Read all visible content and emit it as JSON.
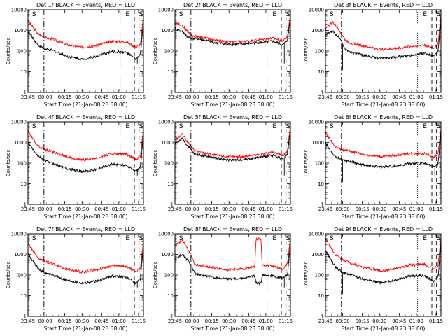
{
  "colors": {
    "events": "#000000",
    "lld": "#ff0000",
    "background": "#ffffff"
  },
  "chart_data": [
    {
      "type": "line",
      "title": "Det 1f BLACK = Events, RED = LLD",
      "ylabel": "Counts/sec",
      "xlabel": "Start Time (21-Jan-08 23:38:00)",
      "x_ticks": [
        "23:45",
        "00:00",
        "00:15",
        "00:30",
        "00:45",
        "01:00",
        "01:15"
      ],
      "y_ticks": [
        "1",
        "10",
        "100",
        "1000",
        "10000"
      ],
      "y_scale": "log",
      "ylim": [
        1,
        10000
      ],
      "markers": {
        "S_left": "S",
        "E": "E",
        "S_right": "S"
      },
      "series": [
        {
          "color": "#ff0000",
          "x": [
            0,
            4,
            7,
            10,
            16,
            22,
            28,
            34,
            40,
            44,
            45.8,
            47
          ],
          "y": [
            3000,
            700,
            450,
            380,
            200,
            150,
            190,
            300,
            280,
            150,
            220,
            5000
          ]
        },
        {
          "color": "#000000",
          "x": [
            0,
            4,
            7,
            10,
            16,
            22,
            28,
            34,
            40,
            44,
            45.8,
            47
          ],
          "y": [
            900,
            200,
            120,
            110,
            55,
            40,
            55,
            95,
            85,
            40,
            70,
            3000
          ]
        }
      ]
    },
    {
      "type": "line",
      "title": "Det 2f BLACK = Events, RED = LLD",
      "ylabel": "Counts/sec",
      "xlabel": "Start Time (21-Jan-08 23:38:00)",
      "x_ticks": [
        "23:45",
        "00:00",
        "00:15",
        "00:30",
        "00:45",
        "01:00",
        "01:15"
      ],
      "y_ticks": [
        "1",
        "10",
        "100",
        "1000",
        "10000"
      ],
      "y_scale": "log",
      "ylim": [
        1,
        10000
      ],
      "markers": {
        "S_left": "S",
        "E": "E",
        "S_right": "S"
      },
      "series": [
        {
          "color": "#ff0000",
          "x": [
            0,
            3,
            5,
            7,
            10,
            16,
            22,
            28,
            34,
            40,
            44,
            45.8,
            47
          ],
          "y": [
            2500,
            1800,
            900,
            550,
            500,
            340,
            280,
            290,
            350,
            420,
            300,
            500,
            7000
          ]
        },
        {
          "color": "#000000",
          "x": [
            0,
            3,
            5,
            7,
            10,
            16,
            22,
            28,
            34,
            40,
            44,
            45.8,
            47
          ],
          "y": [
            1200,
            900,
            500,
            400,
            380,
            260,
            210,
            220,
            260,
            300,
            200,
            350,
            4000
          ]
        }
      ]
    },
    {
      "type": "line",
      "title": "Det 3f BLACK = Events, RED = LLD",
      "ylabel": "Counts/sec",
      "xlabel": "Start Time (21-Jan-08 23:38:00)",
      "x_ticks": [
        "23:45",
        "00:00",
        "00:15",
        "00:30",
        "00:45",
        "01:00",
        "01:15"
      ],
      "y_ticks": [
        "1",
        "10",
        "100",
        "1000",
        "10000"
      ],
      "y_scale": "log",
      "ylim": [
        1,
        10000
      ],
      "markers": {
        "S_left": "S",
        "E": "E",
        "S_right": "S"
      },
      "series": [
        {
          "color": "#ff0000",
          "x": [
            0,
            3,
            6,
            8,
            10,
            16,
            22,
            28,
            34,
            40,
            44,
            45.8,
            47
          ],
          "y": [
            1300,
            2500,
            900,
            350,
            250,
            170,
            120,
            130,
            160,
            200,
            140,
            220,
            6000
          ]
        },
        {
          "color": "#000000",
          "x": [
            0,
            3,
            6,
            8,
            10,
            16,
            22,
            28,
            34,
            40,
            44,
            45.8,
            47
          ],
          "y": [
            600,
            900,
            400,
            120,
            90,
            60,
            45,
            50,
            60,
            80,
            55,
            90,
            3000
          ]
        }
      ]
    },
    {
      "type": "line",
      "title": "Det 4f BLACK = Events, RED = LLD",
      "ylabel": "Counts/sec",
      "xlabel": "Start Time (21-Jan-08 23:38:00)",
      "x_ticks": [
        "23:45",
        "00:00",
        "00:15",
        "00:30",
        "00:45",
        "01:00",
        "01:15"
      ],
      "y_ticks": [
        "1",
        "10",
        "100",
        "1000",
        "10000"
      ],
      "y_scale": "log",
      "ylim": [
        1,
        10000
      ],
      "markers": {
        "S_left": "S",
        "E": "E",
        "S_right": "S"
      },
      "series": [
        {
          "color": "#ff0000",
          "x": [
            0,
            4,
            7,
            10,
            16,
            22,
            28,
            34,
            40,
            44,
            45.8,
            47
          ],
          "y": [
            3500,
            700,
            450,
            350,
            200,
            140,
            180,
            290,
            270,
            150,
            220,
            5000
          ]
        },
        {
          "color": "#000000",
          "x": [
            0,
            4,
            7,
            10,
            16,
            22,
            28,
            34,
            40,
            44,
            45.8,
            47
          ],
          "y": [
            1000,
            220,
            130,
            100,
            55,
            38,
            50,
            90,
            80,
            38,
            65,
            3000
          ]
        }
      ]
    },
    {
      "type": "line",
      "title": "Det 5f BLACK = Events, RED = LLD",
      "ylabel": "Counts/sec",
      "xlabel": "Start Time (21-Jan-08 23:38:00)",
      "x_ticks": [
        "23:45",
        "00:00",
        "00:15",
        "00:30",
        "00:45",
        "01:00",
        "01:15"
      ],
      "y_ticks": [
        "1",
        "10",
        "100",
        "1000",
        "10000"
      ],
      "y_scale": "log",
      "ylim": [
        1,
        10000
      ],
      "markers": {
        "S_left": "S",
        "E": "E",
        "S_right": "S"
      },
      "series": [
        {
          "color": "#ff0000",
          "x": [
            0,
            3,
            5.5,
            8,
            10,
            16,
            22,
            28,
            34,
            40,
            44,
            45.8,
            47
          ],
          "y": [
            1300,
            2500,
            900,
            400,
            350,
            250,
            200,
            210,
            260,
            330,
            230,
            400,
            7000
          ]
        },
        {
          "color": "#000000",
          "x": [
            0,
            3,
            5.5,
            8,
            10,
            16,
            22,
            28,
            34,
            40,
            44,
            45.8,
            47
          ],
          "y": [
            900,
            1500,
            600,
            280,
            250,
            180,
            140,
            150,
            190,
            240,
            160,
            280,
            4000
          ]
        }
      ]
    },
    {
      "type": "line",
      "title": "Det 6f BLACK = Events, RED = LLD",
      "ylabel": "Counts/sec",
      "xlabel": "Start Time (21-Jan-08 23:38:00)",
      "x_ticks": [
        "23:45",
        "00:00",
        "00:15",
        "00:30",
        "00:45",
        "01:00",
        "01:15"
      ],
      "y_ticks": [
        "1",
        "10",
        "100",
        "1000",
        "10000"
      ],
      "y_scale": "log",
      "ylim": [
        1,
        10000
      ],
      "markers": {
        "S_left": "S",
        "E": "E",
        "S_right": "S"
      },
      "series": [
        {
          "color": "#ff0000",
          "x": [
            0,
            4,
            7,
            10,
            16,
            22,
            28,
            34,
            40,
            44,
            45.8,
            47
          ],
          "y": [
            3000,
            600,
            450,
            380,
            260,
            210,
            230,
            290,
            300,
            200,
            260,
            5000
          ]
        },
        {
          "color": "#000000",
          "x": [
            0,
            4,
            7,
            10,
            16,
            22,
            28,
            34,
            40,
            44,
            45.8,
            47
          ],
          "y": [
            900,
            200,
            140,
            120,
            80,
            65,
            72,
            95,
            100,
            65,
            85,
            3000
          ]
        }
      ]
    },
    {
      "type": "line",
      "title": "Det 7f BLACK = Events, RED = LLD",
      "ylabel": "Counts/sec",
      "xlabel": "Start Time (21-Jan-08 23:38:00)",
      "x_ticks": [
        "23:45",
        "00:00",
        "00:15",
        "00:30",
        "00:45",
        "01:00",
        "01:15"
      ],
      "y_ticks": [
        "1",
        "10",
        "100",
        "1000",
        "10000"
      ],
      "y_scale": "log",
      "ylim": [
        1,
        10000
      ],
      "markers": {
        "S_left": "S",
        "E": "E",
        "S_right": "S"
      },
      "series": [
        {
          "color": "#ff0000",
          "x": [
            0,
            4,
            7,
            10,
            16,
            22,
            28,
            34,
            40,
            44,
            45.8,
            47
          ],
          "y": [
            3500,
            700,
            450,
            350,
            190,
            140,
            180,
            280,
            260,
            150,
            210,
            5000
          ]
        },
        {
          "color": "#000000",
          "x": [
            0,
            4,
            7,
            10,
            16,
            22,
            28,
            34,
            40,
            44,
            45.8,
            47
          ],
          "y": [
            1100,
            220,
            120,
            100,
            55,
            40,
            50,
            90,
            80,
            40,
            65,
            3000
          ]
        }
      ]
    },
    {
      "type": "line",
      "title": "Det 8f BLACK = Events, RED = LLD",
      "ylabel": "Counts/sec",
      "xlabel": "Start Time (21-Jan-08 23:38:00)",
      "x_ticks": [
        "23:45",
        "00:00",
        "00:15",
        "00:30",
        "00:45",
        "01:00",
        "01:15"
      ],
      "y_ticks": [
        "1",
        "10",
        "100",
        "1000",
        "10000"
      ],
      "y_scale": "log",
      "ylim": [
        1,
        10000
      ],
      "markers": {
        "S_left": "S",
        "E": "E",
        "S_right": "S"
      },
      "series": [
        {
          "color": "#ff0000",
          "x": [
            0,
            3,
            6,
            8,
            10,
            16,
            22,
            28,
            32.5,
            33,
            35,
            35.5,
            38,
            44,
            45.8,
            47
          ],
          "y": [
            2500,
            5000,
            1200,
            350,
            300,
            220,
            180,
            200,
            260,
            5500,
            5500,
            280,
            300,
            200,
            350,
            7000
          ]
        },
        {
          "color": "#000000",
          "x": [
            0,
            3,
            6,
            8,
            10,
            16,
            22,
            28,
            32.5,
            33,
            35,
            35.5,
            38,
            44,
            45.8,
            47
          ],
          "y": [
            600,
            1000,
            400,
            120,
            100,
            75,
            65,
            70,
            90,
            40,
            40,
            95,
            100,
            70,
            110,
            4000
          ]
        }
      ]
    },
    {
      "type": "line",
      "title": "Det 9f BLACK = Events, RED = LLD",
      "ylabel": "Counts/sec",
      "xlabel": "Start Time (21-Jan-08 23:38:00)",
      "x_ticks": [
        "23:45",
        "00:00",
        "00:15",
        "00:30",
        "00:45",
        "01:00",
        "01:15"
      ],
      "y_ticks": [
        "1",
        "10",
        "100",
        "1000",
        "10000"
      ],
      "y_scale": "log",
      "ylim": [
        1,
        10000
      ],
      "markers": {
        "S_left": "S",
        "E": "E",
        "S_right": "S"
      },
      "series": [
        {
          "color": "#ff0000",
          "x": [
            0,
            4,
            7,
            10,
            16,
            22,
            28,
            34,
            40,
            44,
            45.8,
            47
          ],
          "y": [
            6000,
            1000,
            550,
            400,
            230,
            160,
            190,
            300,
            330,
            200,
            280,
            6000
          ]
        },
        {
          "color": "#000000",
          "x": [
            0,
            4,
            7,
            10,
            16,
            22,
            28,
            34,
            40,
            44,
            45.8,
            47
          ],
          "y": [
            1500,
            250,
            130,
            110,
            60,
            42,
            55,
            90,
            95,
            50,
            75,
            3500
          ]
        }
      ]
    }
  ]
}
